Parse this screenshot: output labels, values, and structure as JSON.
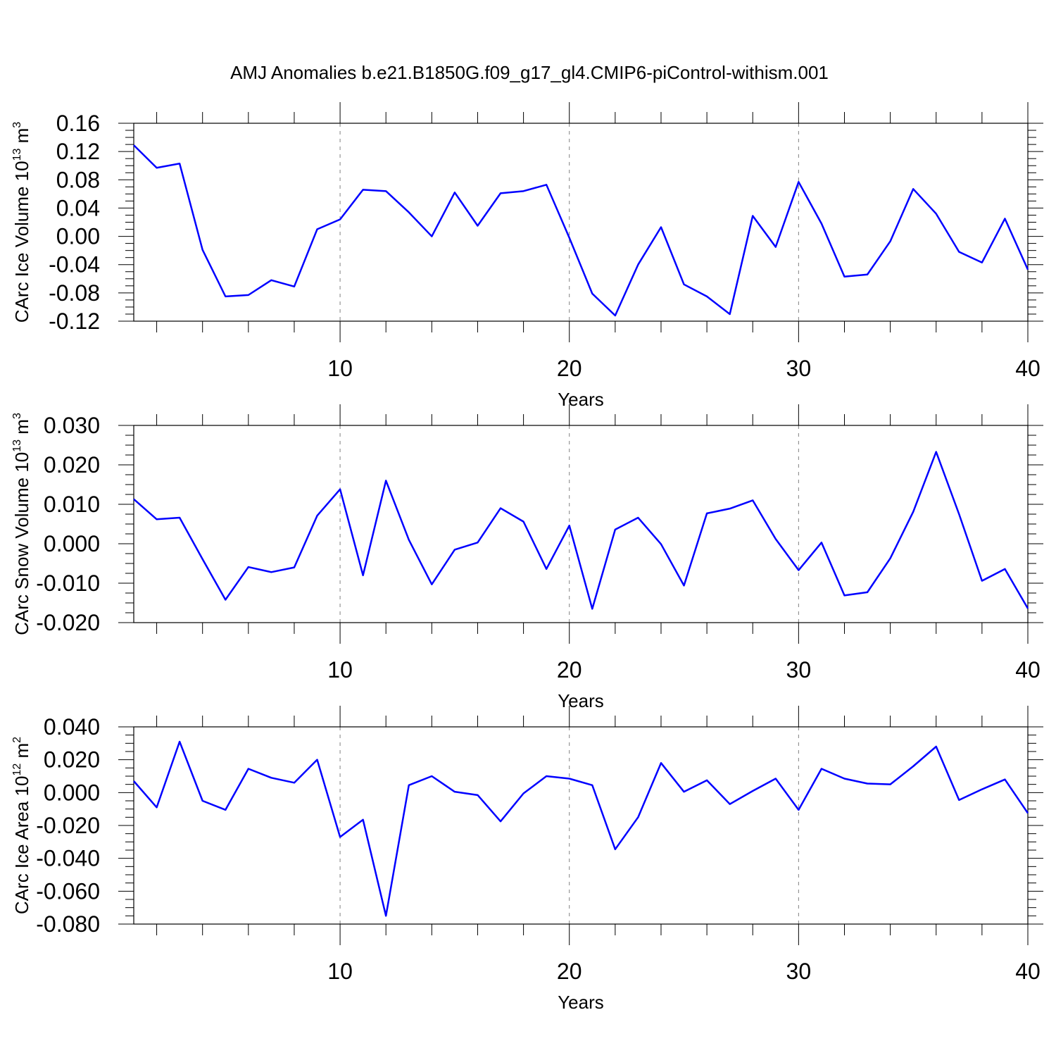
{
  "title": "AMJ Anomalies b.e21.B1850G.f09_g17_gl4.CMIP6-piControl-withism.001",
  "colors": {
    "line": "#0000ff",
    "axis": "#000000",
    "grid": "#808080",
    "background": "#ffffff"
  },
  "chart_data": [
    {
      "type": "line",
      "ylabel": {
        "text": "CArc Ice Volume 10",
        "exponent": "13",
        "unit": "m",
        "unit_exponent": "3"
      },
      "xlabel": "Years",
      "xlim": [
        1,
        40
      ],
      "ylim": [
        -0.12,
        0.16
      ],
      "xticks": [
        10,
        20,
        30,
        40
      ],
      "yticks": [
        -0.12,
        -0.08,
        -0.04,
        0.0,
        0.04,
        0.08,
        0.12,
        0.16
      ],
      "ytick_labels": [
        "-0.12",
        "-0.08",
        "-0.04",
        "0.00",
        "0.04",
        "0.08",
        "0.12",
        "0.16"
      ],
      "grid": "dashed vertical at major x ticks",
      "series": [
        {
          "x": [
            1,
            2,
            3,
            4,
            5,
            6,
            7,
            8,
            9,
            10,
            11,
            12,
            13,
            14,
            15,
            16,
            17,
            18,
            19,
            20,
            21,
            22,
            23,
            24,
            25,
            26,
            27,
            28,
            29,
            30,
            31,
            32,
            33,
            34,
            35,
            36,
            37,
            38,
            39,
            40
          ],
          "values": [
            0.129,
            0.097,
            0.103,
            -0.019,
            -0.085,
            -0.083,
            -0.062,
            -0.071,
            0.01,
            0.024,
            0.066,
            0.064,
            0.034,
            0.0,
            0.062,
            0.015,
            0.061,
            0.064,
            0.073,
            -0.002,
            -0.081,
            -0.112,
            -0.04,
            0.013,
            -0.068,
            -0.085,
            -0.11,
            0.029,
            -0.015,
            0.077,
            0.018,
            -0.057,
            -0.054,
            -0.007,
            0.067,
            0.032,
            -0.022,
            -0.037,
            0.025,
            -0.047
          ]
        }
      ]
    },
    {
      "type": "line",
      "ylabel": {
        "text": "CArc Snow Volume 10",
        "exponent": "13",
        "unit": "m",
        "unit_exponent": "3"
      },
      "xlabel": "Years",
      "xlim": [
        1,
        40
      ],
      "ylim": [
        -0.02,
        0.03
      ],
      "xticks": [
        10,
        20,
        30,
        40
      ],
      "yticks": [
        -0.02,
        -0.01,
        0.0,
        0.01,
        0.02,
        0.03
      ],
      "ytick_labels": [
        "-0.020",
        "-0.010",
        "0.000",
        "0.010",
        "0.020",
        "0.030"
      ],
      "grid": "dashed vertical at major x ticks",
      "series": [
        {
          "x": [
            1,
            2,
            3,
            4,
            5,
            6,
            7,
            8,
            9,
            10,
            11,
            12,
            13,
            14,
            15,
            16,
            17,
            18,
            19,
            20,
            21,
            22,
            23,
            24,
            25,
            26,
            27,
            28,
            29,
            30,
            31,
            32,
            33,
            34,
            35,
            36,
            37,
            38,
            39,
            40
          ],
          "values": [
            0.0113,
            0.0062,
            0.0066,
            -0.0039,
            -0.0142,
            -0.0059,
            -0.0072,
            -0.006,
            0.0071,
            0.0138,
            -0.008,
            0.016,
            0.001,
            -0.0103,
            -0.0015,
            0.0003,
            0.009,
            0.0056,
            -0.0064,
            0.0046,
            -0.0165,
            0.0036,
            0.0066,
            -0.0001,
            -0.0106,
            0.0077,
            0.0089,
            0.011,
            0.0012,
            -0.0067,
            0.0003,
            -0.0131,
            -0.0123,
            -0.0037,
            0.0081,
            0.0233,
            0.0075,
            -0.0094,
            -0.0064,
            -0.0164
          ]
        }
      ]
    },
    {
      "type": "line",
      "ylabel": {
        "text": "CArc Ice Area 10",
        "exponent": "12",
        "unit": "m",
        "unit_exponent": "2"
      },
      "xlabel": "Years",
      "xlim": [
        1,
        40
      ],
      "ylim": [
        -0.08,
        0.04
      ],
      "xticks": [
        10,
        20,
        30,
        40
      ],
      "yticks": [
        -0.08,
        -0.06,
        -0.04,
        -0.02,
        0.0,
        0.02,
        0.04
      ],
      "ytick_labels": [
        "-0.080",
        "-0.060",
        "-0.040",
        "-0.020",
        "0.000",
        "0.020",
        "0.040"
      ],
      "grid": "dashed vertical at major x ticks",
      "series": [
        {
          "x": [
            1,
            2,
            3,
            4,
            5,
            6,
            7,
            8,
            9,
            10,
            11,
            12,
            13,
            14,
            15,
            16,
            17,
            18,
            19,
            20,
            21,
            22,
            23,
            24,
            25,
            26,
            27,
            28,
            29,
            30,
            31,
            32,
            33,
            34,
            35,
            36,
            37,
            38,
            39,
            40
          ],
          "values": [
            0.007,
            -0.009,
            0.031,
            -0.005,
            -0.0105,
            0.0145,
            0.009,
            0.006,
            0.02,
            -0.027,
            -0.0165,
            -0.075,
            0.0045,
            0.01,
            0.0005,
            -0.0015,
            -0.0175,
            -0.0005,
            0.01,
            0.0085,
            0.0045,
            -0.0345,
            -0.015,
            0.018,
            0.0005,
            0.0075,
            -0.007,
            0.001,
            0.0085,
            -0.0105,
            0.0145,
            0.0085,
            0.0055,
            0.005,
            0.016,
            0.028,
            -0.0045,
            0.002,
            0.008,
            -0.0125
          ]
        }
      ]
    }
  ]
}
